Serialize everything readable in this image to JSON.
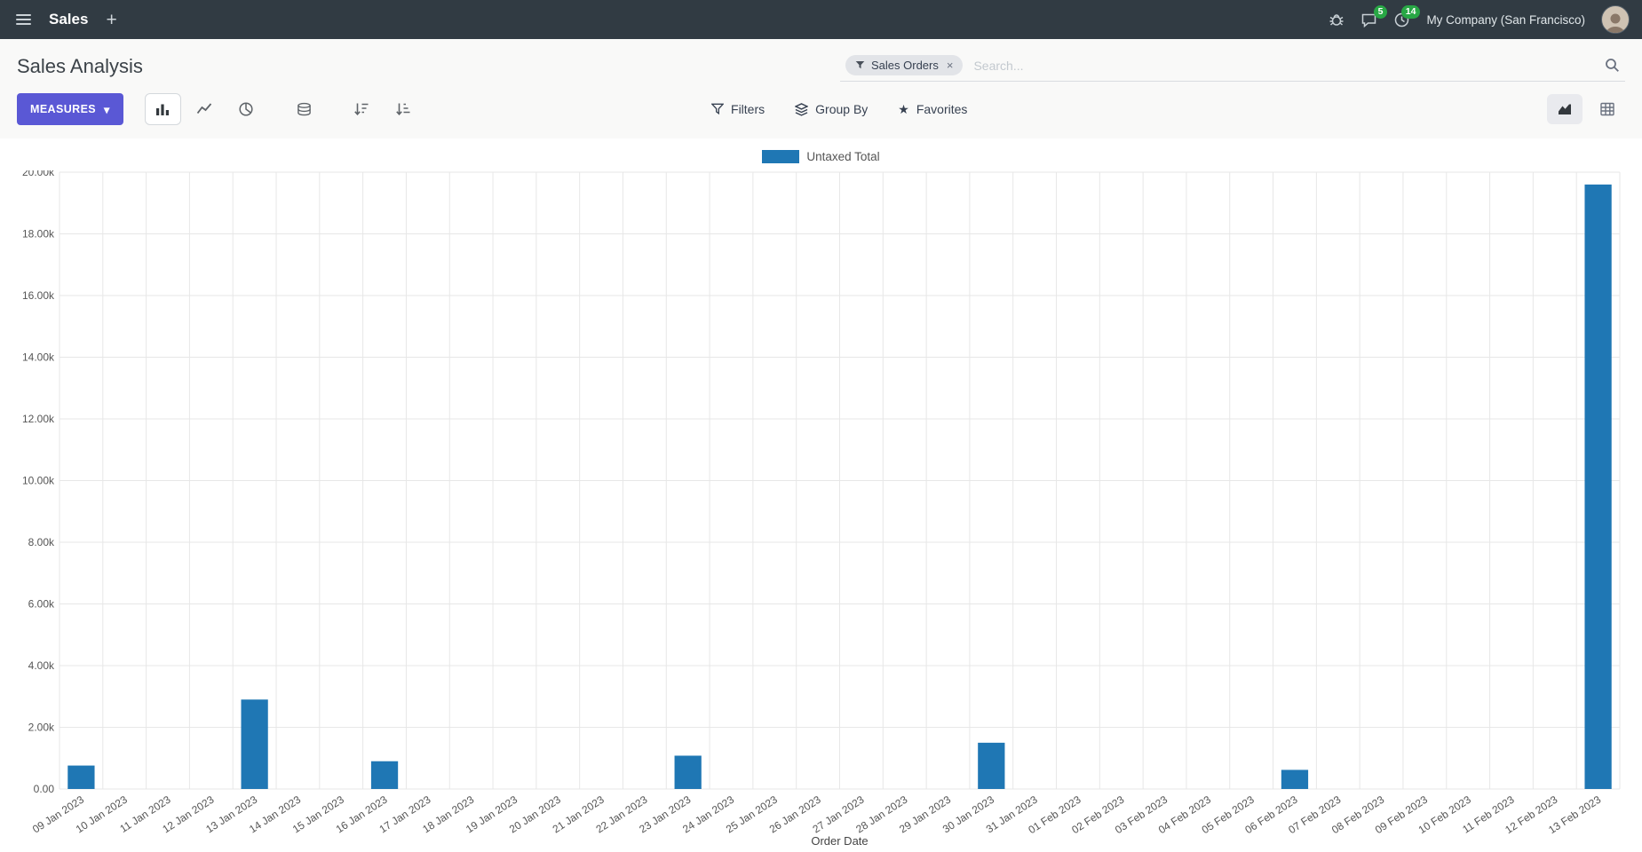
{
  "nav": {
    "app_name": "Sales",
    "company_name": "My Company (San Francisco)",
    "messages_badge": "5",
    "activities_badge": "14"
  },
  "icons": {
    "plus": "+",
    "caret": "▾",
    "star": "★",
    "facet_close": "×"
  },
  "control_panel": {
    "title": "Sales Analysis",
    "measures_button": "MEASURES",
    "search": {
      "facet": "Sales Orders",
      "placeholder": "Search..."
    },
    "filters": "Filters",
    "group_by": "Group By",
    "favorites": "Favorites"
  },
  "colors": {
    "navbar": "#313b43",
    "primary": "#5a58d5",
    "badge": "#28a745",
    "bar": "#1f77b4"
  },
  "chart_data": {
    "type": "bar",
    "title": "",
    "xlabel": "Order Date",
    "ylabel": "",
    "ylim": [
      0,
      20000
    ],
    "ytick_step": 2000,
    "ytick_labels": [
      "0.00",
      "2.00k",
      "4.00k",
      "6.00k",
      "8.00k",
      "10.00k",
      "12.00k",
      "14.00k",
      "16.00k",
      "18.00k",
      "20.00k"
    ],
    "grid": true,
    "legend_position": "top",
    "categories": [
      "09 Jan 2023",
      "10 Jan 2023",
      "11 Jan 2023",
      "12 Jan 2023",
      "13 Jan 2023",
      "14 Jan 2023",
      "15 Jan 2023",
      "16 Jan 2023",
      "17 Jan 2023",
      "18 Jan 2023",
      "19 Jan 2023",
      "20 Jan 2023",
      "21 Jan 2023",
      "22 Jan 2023",
      "23 Jan 2023",
      "24 Jan 2023",
      "25 Jan 2023",
      "26 Jan 2023",
      "27 Jan 2023",
      "28 Jan 2023",
      "29 Jan 2023",
      "30 Jan 2023",
      "31 Jan 2023",
      "01 Feb 2023",
      "02 Feb 2023",
      "03 Feb 2023",
      "04 Feb 2023",
      "05 Feb 2023",
      "06 Feb 2023",
      "07 Feb 2023",
      "08 Feb 2023",
      "09 Feb 2023",
      "10 Feb 2023",
      "11 Feb 2023",
      "12 Feb 2023",
      "13 Feb 2023"
    ],
    "series": [
      {
        "name": "Untaxed Total",
        "color": "#1f77b4",
        "values": [
          760,
          0,
          0,
          0,
          2900,
          0,
          0,
          900,
          0,
          0,
          0,
          0,
          0,
          0,
          1080,
          0,
          0,
          0,
          0,
          0,
          0,
          1500,
          0,
          0,
          0,
          0,
          0,
          0,
          620,
          0,
          0,
          0,
          0,
          0,
          0,
          19600
        ]
      }
    ]
  }
}
